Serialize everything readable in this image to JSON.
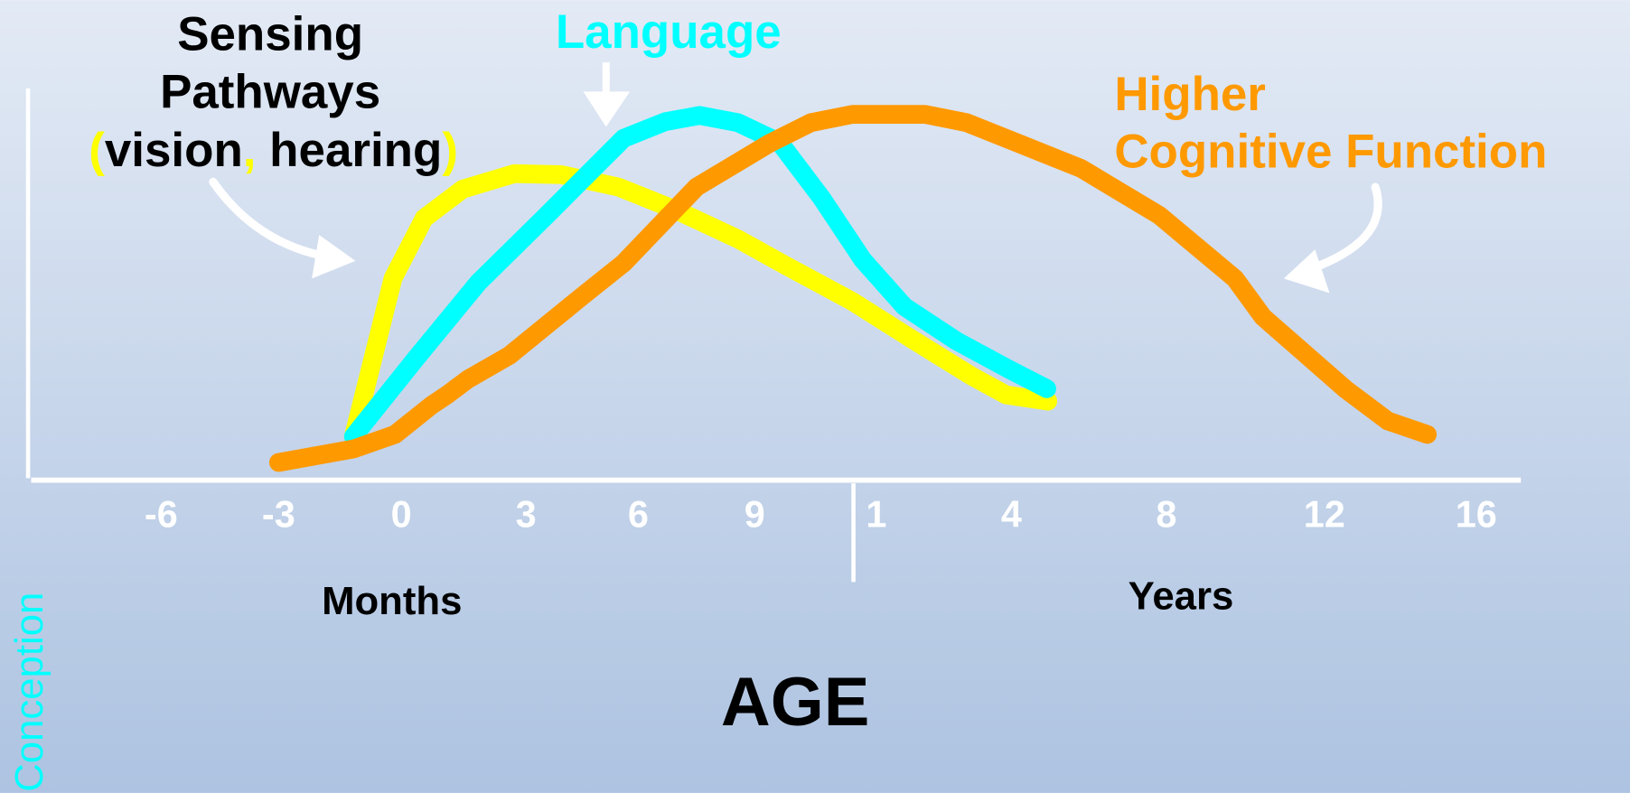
{
  "labels": {
    "sensing": [
      "Sensing",
      "Pathways",
      "(vision, hearing)"
    ],
    "language": "Language",
    "higher": [
      "Higher",
      "Cognitive Function"
    ]
  },
  "axis": {
    "months_ticks": [
      "-6",
      "-3",
      "0",
      "3",
      "6",
      "9"
    ],
    "years_ticks": [
      "1",
      "4",
      "8",
      "12",
      "16"
    ],
    "months_label": "Months",
    "years_label": "Years",
    "title": "AGE",
    "conception": "Conception"
  }
}
